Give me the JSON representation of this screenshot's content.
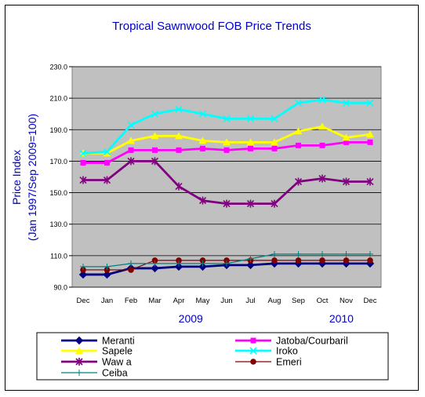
{
  "chart_data": {
    "type": "line",
    "title": "Tropical Sawnwood FOB Price Trends",
    "ylabel": "Price Index",
    "ylabel_sub": "(Jan 1997/Sep 2009=100)",
    "ylim": [
      90,
      230
    ],
    "yticks": [
      90,
      110,
      130,
      150,
      170,
      190,
      210,
      230
    ],
    "ytick_labels": [
      "90.0",
      "110.0",
      "130.0",
      "150.0",
      "170.0",
      "190.0",
      "210.0",
      "230.0"
    ],
    "grid": "horizontal",
    "plot_background": "#c0c0c0",
    "categories": [
      "Dec",
      "Jan",
      "Feb",
      "Mar",
      "Apr",
      "May",
      "Jun",
      "Jul",
      "Aug",
      "Sep",
      "Oct",
      "Nov",
      "Dec"
    ],
    "year_labels": [
      {
        "label": "2009",
        "category_index": 4.5
      },
      {
        "label": "2010",
        "category_index": 10.8
      }
    ],
    "legend_placement": "bottom",
    "series": [
      {
        "name": "Meranti",
        "color": "#000080",
        "marker": "diamond",
        "values": [
          98,
          98,
          102,
          102,
          103,
          103,
          104,
          104,
          105,
          105,
          105,
          105,
          105
        ]
      },
      {
        "name": "Jatoba/Courbaril",
        "color": "#ff00ff",
        "marker": "square",
        "values": [
          169,
          169,
          177,
          177,
          177,
          178,
          177,
          178,
          178,
          180,
          180,
          182,
          182
        ]
      },
      {
        "name": "Sapele",
        "color": "#ffff00",
        "marker": "triangle",
        "values": [
          175,
          175,
          183,
          186,
          186,
          183,
          182,
          182,
          182,
          189,
          192,
          185,
          187
        ]
      },
      {
        "name": "Iroko",
        "color": "#00ffff",
        "marker": "x",
        "values": [
          175,
          176,
          193,
          200,
          203,
          200,
          197,
          197,
          197,
          207,
          209,
          207,
          207
        ]
      },
      {
        "name": "Waw a",
        "color": "#800080",
        "marker": "star",
        "values": [
          158,
          158,
          170,
          170,
          154,
          145,
          143,
          143,
          143,
          157,
          159,
          157,
          157
        ]
      },
      {
        "name": "Emeri",
        "color": "#800000",
        "marker": "circle",
        "values": [
          101,
          101,
          101,
          107,
          107,
          107,
          107,
          107,
          107,
          107,
          107,
          107,
          107
        ]
      },
      {
        "name": "Ceiba",
        "color": "#008080",
        "marker": "plus",
        "values": [
          103,
          103,
          105,
          105,
          105,
          105,
          105,
          108,
          111,
          111,
          111,
          111,
          111
        ]
      }
    ]
  }
}
